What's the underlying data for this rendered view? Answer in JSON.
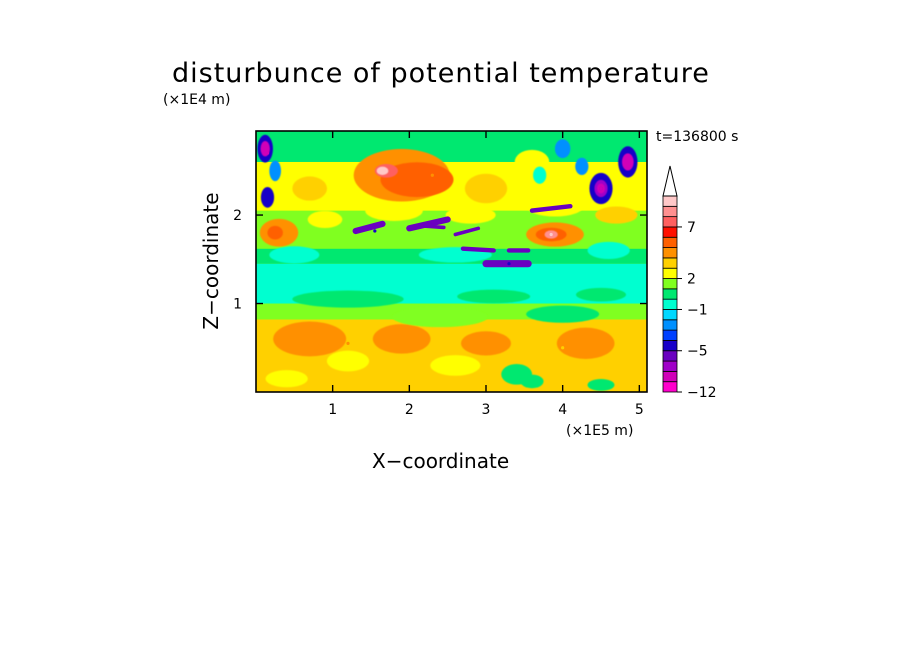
{
  "chart_data": {
    "type": "heatmap",
    "title": "disturbunce of potential temperature",
    "xlabel": "X−coordinate",
    "ylabel": "Z−coordinate",
    "x_unit": "(×1E5 m)",
    "y_unit": "(×1E4 m)",
    "annotation": "t=136800 s",
    "xlim": [
      0,
      5.1
    ],
    "ylim": [
      0,
      2.95
    ],
    "x_ticks": [
      "1",
      "2",
      "3",
      "4",
      "5"
    ],
    "y_ticks": [
      "1",
      "2"
    ],
    "colorbar": {
      "levels": [
        -12,
        -11,
        -9,
        -7,
        -5,
        -4,
        -3,
        -2,
        -1,
        0,
        1,
        2,
        3,
        4,
        5,
        6,
        7,
        8,
        9,
        10
      ],
      "labels": [
        "−12",
        "−5",
        "−1",
        "2",
        "7"
      ],
      "colors": [
        "#ff00cc",
        "#d000b8",
        "#a000c8",
        "#6a00c0",
        "#1800c8",
        "#0040ff",
        "#0090ff",
        "#00d8ff",
        "#00ffd0",
        "#00e870",
        "#80ff20",
        "#ffff00",
        "#ffd000",
        "#ff9000",
        "#ff6000",
        "#ff1000",
        "#ff6060",
        "#ff9090",
        "#ffc8c8"
      ],
      "extend": "max"
    },
    "features": [
      {
        "x": 1.65,
        "z": 2.5,
        "value": 9
      },
      {
        "x": 2.3,
        "z": 2.45,
        "value": 4
      },
      {
        "x": 3.85,
        "z": 1.78,
        "value": 9
      },
      {
        "x": 4.15,
        "z": 1.78,
        "value": 4
      },
      {
        "x": 0.2,
        "z": 1.8,
        "value": 5
      },
      {
        "x": 2.3,
        "z": 1.88,
        "value": -6
      },
      {
        "x": 1.55,
        "z": 1.82,
        "value": -5
      },
      {
        "x": 3.3,
        "z": 1.45,
        "value": -5
      },
      {
        "x": 4.5,
        "z": 2.3,
        "value": -6
      },
      {
        "x": 4.5,
        "z": 2.3,
        "value": -11
      },
      {
        "x": 4.85,
        "z": 2.6,
        "value": -11
      },
      {
        "x": 0.15,
        "z": 2.7,
        "value": -11
      },
      {
        "x": 0.1,
        "z": 2.2,
        "value": -5
      },
      {
        "x": 1.4,
        "z": 1.25,
        "value": -1
      },
      {
        "x": 3.2,
        "z": 1.3,
        "value": -1
      },
      {
        "x": 4.2,
        "z": 1.3,
        "value": -1
      },
      {
        "x": 1.2,
        "z": 0.55,
        "value": 4
      },
      {
        "x": 2.5,
        "z": 0.55,
        "value": 3
      },
      {
        "x": 4.0,
        "z": 0.5,
        "value": 3
      },
      {
        "x": 3.5,
        "z": 0.2,
        "value": 0
      }
    ]
  }
}
